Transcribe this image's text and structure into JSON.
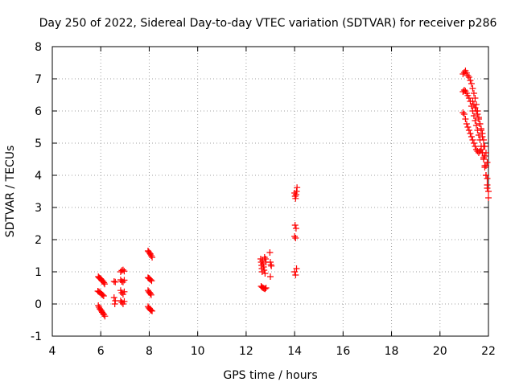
{
  "chart_data": {
    "type": "scatter",
    "title": "Day 250 of 2022, Sidereal Day-to-day VTEC variation (SDTVAR) for receiver p286",
    "xlabel": "GPS time / hours",
    "ylabel": "SDTVAR / TECUs",
    "xlim": [
      4,
      22
    ],
    "ylim": [
      -1,
      8
    ],
    "xticks": [
      4,
      6,
      8,
      10,
      12,
      14,
      16,
      18,
      20,
      22
    ],
    "yticks": [
      -1,
      0,
      1,
      2,
      3,
      4,
      5,
      6,
      7,
      8
    ],
    "grid": true,
    "marker": "+",
    "color": "#ff0000",
    "series": [
      {
        "name": "SDTVAR",
        "points": [
          [
            5.9,
            0.85
          ],
          [
            5.93,
            0.82
          ],
          [
            5.96,
            0.8
          ],
          [
            6.0,
            0.78
          ],
          [
            6.03,
            0.75
          ],
          [
            6.06,
            0.72
          ],
          [
            6.1,
            0.7
          ],
          [
            6.13,
            0.66
          ],
          [
            6.16,
            0.62
          ],
          [
            5.88,
            0.4
          ],
          [
            5.92,
            0.38
          ],
          [
            5.96,
            0.36
          ],
          [
            6.0,
            0.34
          ],
          [
            6.04,
            0.3
          ],
          [
            6.08,
            0.28
          ],
          [
            6.12,
            0.25
          ],
          [
            5.9,
            -0.05
          ],
          [
            5.93,
            -0.1
          ],
          [
            5.96,
            -0.15
          ],
          [
            6.0,
            -0.18
          ],
          [
            6.03,
            -0.22
          ],
          [
            6.06,
            -0.26
          ],
          [
            6.1,
            -0.3
          ],
          [
            6.13,
            -0.33
          ],
          [
            6.17,
            -0.38
          ],
          [
            6.55,
            0.7
          ],
          [
            6.6,
            0.68
          ],
          [
            6.55,
            0.2
          ],
          [
            6.6,
            0.1
          ],
          [
            6.58,
            0.0
          ],
          [
            6.82,
            1.0
          ],
          [
            6.87,
            1.04
          ],
          [
            6.92,
            1.06
          ],
          [
            6.97,
            1.02
          ],
          [
            6.82,
            0.75
          ],
          [
            6.87,
            0.7
          ],
          [
            6.92,
            0.68
          ],
          [
            6.97,
            0.74
          ],
          [
            6.82,
            0.42
          ],
          [
            6.87,
            0.35
          ],
          [
            6.92,
            0.3
          ],
          [
            6.97,
            0.38
          ],
          [
            6.82,
            0.1
          ],
          [
            6.87,
            0.05
          ],
          [
            6.92,
            0.0
          ],
          [
            6.97,
            0.08
          ],
          [
            7.95,
            1.65
          ],
          [
            7.98,
            1.62
          ],
          [
            8.02,
            1.58
          ],
          [
            8.05,
            1.55
          ],
          [
            8.08,
            1.5
          ],
          [
            8.12,
            1.45
          ],
          [
            7.95,
            0.82
          ],
          [
            7.98,
            0.8
          ],
          [
            8.02,
            0.78
          ],
          [
            8.06,
            0.75
          ],
          [
            8.1,
            0.72
          ],
          [
            7.95,
            0.42
          ],
          [
            7.98,
            0.38
          ],
          [
            8.02,
            0.35
          ],
          [
            8.05,
            0.32
          ],
          [
            8.08,
            0.28
          ],
          [
            7.95,
            -0.08
          ],
          [
            7.98,
            -0.12
          ],
          [
            8.02,
            -0.15
          ],
          [
            8.05,
            -0.18
          ],
          [
            8.08,
            -0.2
          ],
          [
            8.12,
            -0.22
          ],
          [
            12.6,
            1.4
          ],
          [
            12.62,
            1.3
          ],
          [
            12.64,
            1.2
          ],
          [
            12.65,
            1.1
          ],
          [
            12.66,
            1.0
          ],
          [
            12.68,
            1.35
          ],
          [
            12.7,
            1.25
          ],
          [
            12.72,
            1.15
          ],
          [
            12.74,
            1.05
          ],
          [
            12.76,
            1.45
          ],
          [
            12.78,
            0.95
          ],
          [
            12.8,
            1.4
          ],
          [
            12.82,
            1.3
          ],
          [
            12.62,
            0.55
          ],
          [
            12.66,
            0.52
          ],
          [
            12.7,
            0.5
          ],
          [
            12.74,
            0.48
          ],
          [
            12.78,
            0.47
          ],
          [
            12.82,
            0.5
          ],
          [
            12.98,
            1.6
          ],
          [
            13.0,
            1.3
          ],
          [
            13.02,
            1.22
          ],
          [
            13.04,
            1.18
          ],
          [
            13.0,
            0.85
          ],
          [
            14.0,
            3.45
          ],
          [
            14.02,
            3.35
          ],
          [
            14.04,
            3.28
          ],
          [
            14.06,
            3.4
          ],
          [
            14.08,
            3.5
          ],
          [
            14.1,
            3.62
          ],
          [
            14.02,
            2.45
          ],
          [
            14.06,
            2.35
          ],
          [
            14.0,
            2.1
          ],
          [
            14.04,
            2.05
          ],
          [
            14.0,
            1.0
          ],
          [
            14.04,
            0.9
          ],
          [
            14.08,
            1.1
          ],
          [
            20.95,
            7.15
          ],
          [
            21.0,
            7.2
          ],
          [
            21.05,
            7.25
          ],
          [
            21.1,
            7.18
          ],
          [
            21.15,
            7.1
          ],
          [
            21.2,
            7.05
          ],
          [
            21.25,
            6.95
          ],
          [
            21.3,
            6.85
          ],
          [
            21.35,
            6.7
          ],
          [
            21.4,
            6.55
          ],
          [
            21.45,
            6.4
          ],
          [
            21.5,
            6.2
          ],
          [
            21.55,
            6.0
          ],
          [
            21.6,
            5.8
          ],
          [
            21.65,
            5.6
          ],
          [
            21.7,
            5.4
          ],
          [
            21.75,
            5.2
          ],
          [
            21.8,
            4.9
          ],
          [
            21.85,
            4.6
          ],
          [
            21.9,
            4.3
          ],
          [
            21.95,
            3.9
          ],
          [
            22.0,
            3.5
          ],
          [
            20.95,
            6.6
          ],
          [
            21.0,
            6.65
          ],
          [
            21.05,
            6.62
          ],
          [
            21.1,
            6.55
          ],
          [
            21.15,
            6.48
          ],
          [
            21.2,
            6.4
          ],
          [
            21.25,
            6.3
          ],
          [
            21.3,
            6.15
          ],
          [
            21.35,
            6.0
          ],
          [
            21.4,
            5.85
          ],
          [
            21.45,
            5.7
          ],
          [
            21.5,
            5.55
          ],
          [
            21.55,
            5.4
          ],
          [
            21.6,
            5.25
          ],
          [
            21.65,
            5.1
          ],
          [
            21.7,
            4.9
          ],
          [
            21.75,
            4.7
          ],
          [
            21.8,
            4.5
          ],
          [
            21.85,
            4.25
          ],
          [
            21.9,
            4.0
          ],
          [
            21.95,
            3.7
          ],
          [
            22.0,
            3.3
          ],
          [
            20.95,
            5.95
          ],
          [
            21.0,
            5.9
          ],
          [
            21.05,
            5.75
          ],
          [
            21.1,
            5.6
          ],
          [
            21.15,
            5.5
          ],
          [
            21.2,
            5.4
          ],
          [
            21.25,
            5.3
          ],
          [
            21.3,
            5.2
          ],
          [
            21.35,
            5.1
          ],
          [
            21.4,
            5.0
          ],
          [
            21.45,
            4.9
          ],
          [
            21.5,
            4.8
          ],
          [
            21.55,
            4.75
          ],
          [
            21.6,
            4.7
          ],
          [
            21.65,
            4.75
          ],
          [
            21.7,
            4.8
          ],
          [
            21.75,
            4.7
          ],
          [
            21.8,
            4.55
          ],
          [
            21.85,
            4.3
          ],
          [
            21.9,
            4.0
          ],
          [
            21.95,
            3.6
          ],
          [
            21.35,
            6.3
          ],
          [
            21.4,
            6.2
          ],
          [
            21.45,
            6.1
          ],
          [
            21.5,
            6.0
          ],
          [
            21.55,
            5.9
          ],
          [
            21.6,
            5.75
          ],
          [
            21.65,
            5.6
          ],
          [
            21.7,
            5.45
          ],
          [
            21.75,
            5.3
          ],
          [
            21.8,
            5.1
          ],
          [
            21.85,
            4.9
          ],
          [
            21.9,
            4.7
          ],
          [
            21.95,
            4.4
          ]
        ]
      }
    ]
  }
}
